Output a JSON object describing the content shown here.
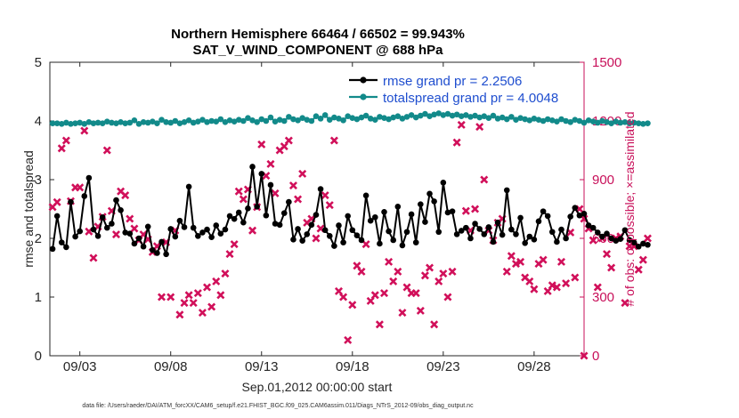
{
  "chart_data": {
    "type": "line",
    "title": "Northern Hemisphere 66464 / 66502 = 99.943%",
    "subtitle": "SAT_V_WIND_COMPONENT @ 688 hPa",
    "xlabel": "Sep.01,2012 00:00:00 start",
    "ylabel": "rmse and totalspread",
    "y2label": "# of obs: o=possible; ×=assimilated",
    "footer": "data file: /Users/raeder/DAI/ATM_forcXX/CAM6_setup/f.e21.FHIST_BGC.f09_025.CAM6assim.011/Diags_NTrS_2012-09/obs_diag_output.nc",
    "xlim": [
      1.35,
      30.75
    ],
    "ylim": [
      0,
      5
    ],
    "y2lim": [
      0,
      1500
    ],
    "x_ticks": [
      3,
      8,
      13,
      18,
      23,
      28
    ],
    "x_tick_labels": [
      "09/03",
      "09/08",
      "09/13",
      "09/18",
      "09/23",
      "09/28"
    ],
    "y_ticks": [
      0,
      1,
      2,
      3,
      4,
      5
    ],
    "y_tick_labels": [
      "0",
      "1",
      "2",
      "3",
      "4",
      "5"
    ],
    "y2_ticks": [
      0,
      300,
      600,
      900,
      1200,
      1500
    ],
    "y2_tick_labels": [
      "0",
      "300",
      "600",
      "900",
      "1200",
      "1500"
    ],
    "legend_location": "top-right",
    "colors": {
      "rmse": "#000000",
      "spread": "#128a8a",
      "obs": "#d1105a",
      "axis": "#262626",
      "right_axis": "#c8105a",
      "legend_text": "#1f4ecf"
    },
    "series": [
      {
        "name": "rmse grand pr = 2.2506",
        "axis": "left",
        "x_start": 1.5,
        "x_step": 0.25,
        "values": [
          1.82,
          2.38,
          1.93,
          1.85,
          2.62,
          2.03,
          2.12,
          2.72,
          3.03,
          2.15,
          2.04,
          2.36,
          2.18,
          2.25,
          2.65,
          2.48,
          2.1,
          2.08,
          1.91,
          2.0,
          1.86,
          2.2,
          1.8,
          1.75,
          1.94,
          1.73,
          2.16,
          2.03,
          2.3,
          2.19,
          2.88,
          2.18,
          2.04,
          2.1,
          2.15,
          2.02,
          2.22,
          2.08,
          2.15,
          2.38,
          2.33,
          2.44,
          2.27,
          2.51,
          3.22,
          2.54,
          3.1,
          2.39,
          2.91,
          2.25,
          2.23,
          2.43,
          2.62,
          1.98,
          2.16,
          1.96,
          2.07,
          2.23,
          2.4,
          2.84,
          2.14,
          2.04,
          1.87,
          2.22,
          1.93,
          2.38,
          2.14,
          2.05,
          1.97,
          2.73,
          2.3,
          2.36,
          1.91,
          2.45,
          2.12,
          1.97,
          2.54,
          1.88,
          2.11,
          2.41,
          1.93,
          2.58,
          2.28,
          2.76,
          2.63,
          2.11,
          2.95,
          2.44,
          2.46,
          2.07,
          2.13,
          2.18,
          2.0,
          2.25,
          2.16,
          2.07,
          2.19,
          1.94,
          2.27,
          2.06,
          2.82,
          2.15,
          2.07,
          2.35,
          1.92,
          2.03,
          1.98,
          2.29,
          2.46,
          2.38,
          2.11,
          1.94,
          2.15,
          2.0,
          2.37,
          2.52,
          2.39,
          2.42,
          2.22,
          2.18,
          2.1,
          2.03,
          2.08,
          2.0,
          1.96,
          1.99,
          2.14,
          1.97,
          1.93,
          1.86,
          1.91,
          1.89
        ]
      },
      {
        "name": "totalspread grand pr = 4.0048",
        "axis": "left",
        "x_start": 1.5,
        "x_step": 0.25,
        "values": [
          3.96,
          3.96,
          3.95,
          3.97,
          3.95,
          3.96,
          3.97,
          3.95,
          3.98,
          3.96,
          3.97,
          3.96,
          3.99,
          3.97,
          3.96,
          3.98,
          3.96,
          3.97,
          4.01,
          3.95,
          3.98,
          3.97,
          3.99,
          3.96,
          4.02,
          3.98,
          3.97,
          4.0,
          3.96,
          3.98,
          4.01,
          3.97,
          3.99,
          4.02,
          3.98,
          4.0,
          3.99,
          4.03,
          3.98,
          4.01,
          3.99,
          4.02,
          4.0,
          4.05,
          4.01,
          3.98,
          4.03,
          4.0,
          4.06,
          3.99,
          4.02,
          4.0,
          4.07,
          4.03,
          4.01,
          4.05,
          4.02,
          4.0,
          4.08,
          4.04,
          4.1,
          4.02,
          4.06,
          4.04,
          4.01,
          4.08,
          4.05,
          4.03,
          4.06,
          4.09,
          4.04,
          4.02,
          4.07,
          4.05,
          4.03,
          4.06,
          4.08,
          4.04,
          4.07,
          4.1,
          4.06,
          4.09,
          4.12,
          4.08,
          4.11,
          4.13,
          4.1,
          4.12,
          4.09,
          4.11,
          4.08,
          4.1,
          4.07,
          4.09,
          4.06,
          4.08,
          4.05,
          4.09,
          4.04,
          4.06,
          4.03,
          4.07,
          4.02,
          4.05,
          4.03,
          4.01,
          4.04,
          4.02,
          4.0,
          4.03,
          4.01,
          3.99,
          4.03,
          4.0,
          3.98,
          4.02,
          4.0,
          3.97,
          4.01,
          3.99,
          3.97,
          4.0,
          3.98,
          3.96,
          3.99,
          3.97,
          3.98,
          3.96,
          3.97,
          3.96,
          3.95,
          3.96
        ]
      },
      {
        "name": "assimilated obs count",
        "axis": "right",
        "x_start": 1.5,
        "x_step": 0.25,
        "values": [
          760,
          785,
          1060,
          1100,
          790,
          860,
          860,
          1150,
          635,
          500,
          660,
          710,
          1050,
          740,
          620,
          840,
          820,
          700,
          650,
          590,
          620,
          595,
          530,
          560,
          300,
          580,
          300,
          640,
          210,
          270,
          310,
          270,
          320,
          220,
          350,
          250,
          380,
          310,
          420,
          520,
          570,
          840,
          800,
          850,
          640,
          760,
          1080,
          920,
          980,
          830,
          1050,
          1070,
          1100,
          870,
          800,
          930,
          680,
          700,
          600,
          650,
          820,
          770,
          1100,
          330,
          300,
          80,
          260,
          460,
          430,
          570,
          280,
          310,
          160,
          320,
          480,
          380,
          430,
          220,
          350,
          320,
          320,
          230,
          410,
          450,
          160,
          380,
          420,
          300,
          430,
          1090,
          1180,
          740,
          640,
          750,
          1170,
          900,
          640,
          590,
          680,
          700,
          430,
          510,
          470,
          480,
          400,
          380,
          340,
          470,
          490,
          330,
          360,
          350,
          480,
          370,
          630,
          400,
          750,
          700,
          650,
          590,
          350,
          600,
          520,
          450,
          600,
          610,
          270,
          560,
          560,
          440,
          490,
          600
        ]
      }
    ],
    "extra_points": [
      {
        "x": 30.75,
        "y2": 0
      }
    ]
  }
}
